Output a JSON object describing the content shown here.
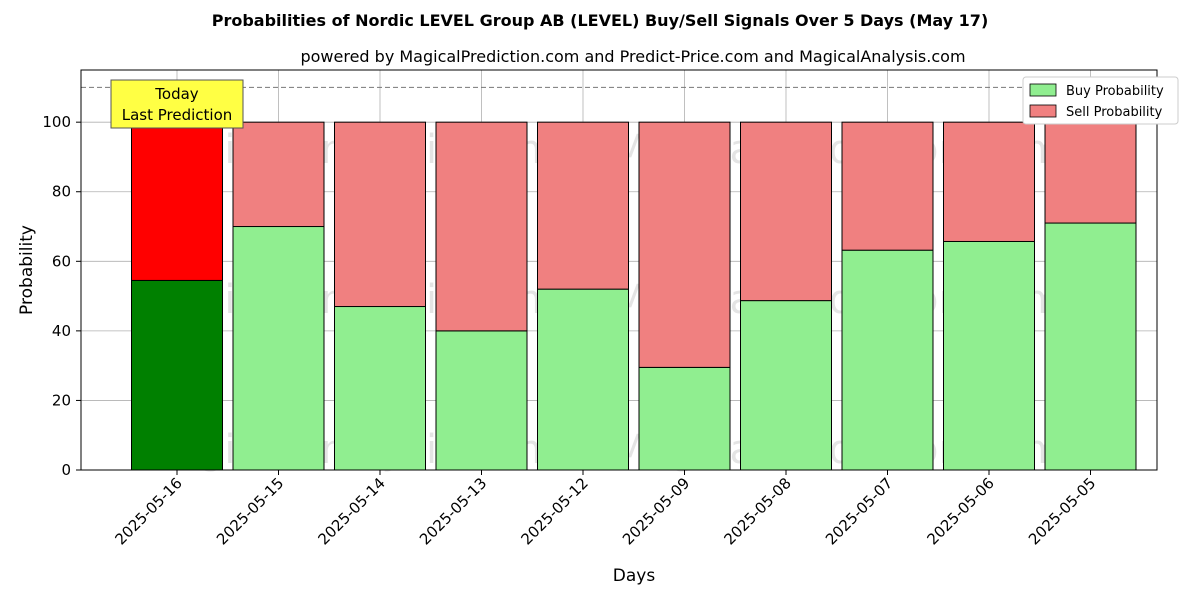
{
  "chart_data": {
    "type": "bar",
    "stacked": true,
    "title": "Probabilities of Nordic LEVEL Group AB (LEVEL) Buy/Sell Signals Over 5 Days (May 17)",
    "subtitle": "powered by MagicalPrediction.com and Predict-Price.com and MagicalAnalysis.com",
    "xlabel": "Days",
    "ylabel": "Probability",
    "ylim": [
      0,
      115
    ],
    "yticks": [
      0,
      20,
      40,
      60,
      80,
      100
    ],
    "grid": true,
    "legend_position": "top-right",
    "categories": [
      "2025-05-16",
      "2025-05-15",
      "2025-05-14",
      "2025-05-13",
      "2025-05-12",
      "2025-05-09",
      "2025-05-08",
      "2025-05-07",
      "2025-05-06",
      "2025-05-05"
    ],
    "series": [
      {
        "name": "Buy Probability",
        "values": [
          54.5,
          70,
          47,
          40,
          52,
          29.5,
          48.7,
          63.2,
          65.7,
          71
        ],
        "color": "#90ee90",
        "highlight_color": "#008000"
      },
      {
        "name": "Sell Probability",
        "values": [
          45.5,
          30,
          53,
          60,
          48,
          70.5,
          51.3,
          36.8,
          34.3,
          29
        ],
        "color": "#f08080",
        "highlight_color": "#ff0000"
      }
    ],
    "highlight_index": 0,
    "reference_line": {
      "y": 110,
      "style": "dashed"
    },
    "annotation": {
      "lines": [
        "Today",
        "Last Prediction"
      ],
      "category_index": 0,
      "background": "#ffff44"
    },
    "watermarks": [
      "MagicalAnalysis.com",
      "MagicalPrediction.com"
    ]
  }
}
